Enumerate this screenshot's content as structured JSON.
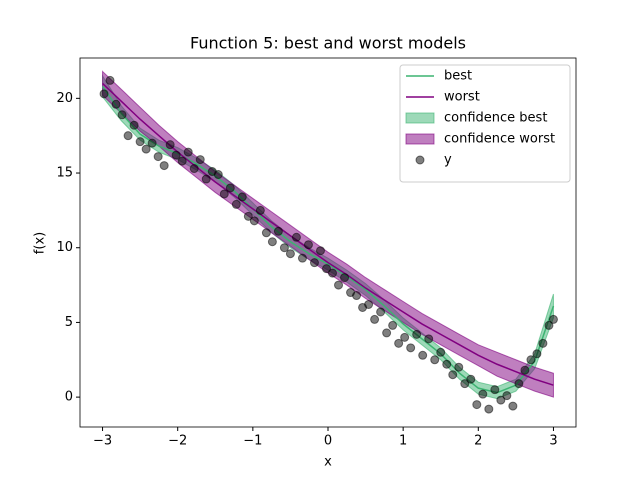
{
  "chart_data": {
    "type": "line",
    "title": "Function 5: best and worst models",
    "x_label": "x",
    "y_label": "f(x)",
    "xlim": [
      -3.3,
      3.3
    ],
    "ylim": [
      -2.0,
      22.7
    ],
    "xticks": [
      {
        "value": -3,
        "label": "−3"
      },
      {
        "value": -2,
        "label": "−2"
      },
      {
        "value": -1,
        "label": "−1"
      },
      0,
      1,
      2,
      3
    ],
    "yticks": [
      0,
      5,
      10,
      15,
      20
    ],
    "legend": "upper right",
    "x": [
      -3,
      -2.75,
      -2.5,
      -2.25,
      -2,
      -1.75,
      -1.5,
      -1.25,
      -1,
      -0.75,
      -0.5,
      -0.25,
      0,
      0.25,
      0.5,
      0.75,
      1,
      1.25,
      1.5,
      1.75,
      2,
      2.25,
      2.5,
      2.75,
      3
    ],
    "series": [
      {
        "name": "best",
        "color": "#3cb371",
        "values": [
          20.8,
          19.0,
          17.6,
          16.8,
          16.3,
          15.6,
          14.8,
          13.8,
          12.6,
          11.4,
          10.4,
          9.6,
          8.9,
          8.1,
          7.2,
          6.1,
          4.9,
          3.9,
          2.9,
          1.6,
          0.6,
          0.3,
          0.8,
          2.4,
          6.1
        ]
      },
      {
        "name": "worst",
        "color": "#800080",
        "values": [
          21.0,
          19.8,
          18.6,
          17.5,
          16.4,
          15.4,
          14.4,
          13.5,
          12.6,
          11.7,
          10.8,
          9.9,
          9.0,
          8.2,
          7.3,
          6.5,
          5.7,
          4.9,
          4.2,
          3.5,
          2.8,
          2.2,
          1.7,
          1.2,
          0.8
        ]
      }
    ],
    "bands": [
      {
        "name": "confidence best",
        "color": "#3cb371",
        "lower": [
          20.1,
          18.5,
          17.2,
          16.4,
          15.9,
          15.2,
          14.4,
          13.4,
          12.2,
          11.0,
          10.0,
          9.2,
          8.5,
          7.7,
          6.8,
          5.7,
          4.5,
          3.5,
          2.5,
          1.2,
          0.2,
          -0.1,
          0.4,
          1.9,
          5.3
        ],
        "upper": [
          21.5,
          19.5,
          18.0,
          17.2,
          16.7,
          16.0,
          15.2,
          14.2,
          13.0,
          11.8,
          10.8,
          10.0,
          9.3,
          8.5,
          7.6,
          6.5,
          5.3,
          4.3,
          3.3,
          2.0,
          1.0,
          0.7,
          1.2,
          2.9,
          6.9
        ]
      },
      {
        "name": "confidence worst",
        "color": "#800080",
        "lower": [
          20.2,
          19.0,
          17.8,
          16.8,
          15.7,
          14.7,
          13.7,
          12.8,
          11.9,
          11.0,
          10.1,
          9.2,
          8.3,
          7.5,
          6.6,
          5.8,
          5.0,
          4.2,
          3.5,
          2.8,
          2.1,
          1.4,
          0.9,
          0.4,
          0.0
        ],
        "upper": [
          21.8,
          20.6,
          19.4,
          18.2,
          17.1,
          16.1,
          15.1,
          14.2,
          13.3,
          12.4,
          11.5,
          10.6,
          9.7,
          8.9,
          8.0,
          7.2,
          6.4,
          5.6,
          4.9,
          4.2,
          3.5,
          3.0,
          2.5,
          2.0,
          1.6
        ]
      }
    ],
    "scatter": {
      "name": "y",
      "color": "#000000",
      "x": [
        -2.98,
        -2.9,
        -2.82,
        -2.74,
        -2.66,
        -2.58,
        -2.5,
        -2.42,
        -2.34,
        -2.26,
        -2.18,
        -2.1,
        -2.02,
        -1.94,
        -1.86,
        -1.78,
        -1.7,
        -1.62,
        -1.54,
        -1.46,
        -1.38,
        -1.3,
        -1.22,
        -1.14,
        -1.06,
        -0.98,
        -0.9,
        -0.82,
        -0.74,
        -0.66,
        -0.58,
        -0.5,
        -0.42,
        -0.34,
        -0.26,
        -0.18,
        -0.1,
        -0.02,
        0.06,
        0.14,
        0.22,
        0.3,
        0.38,
        0.46,
        0.54,
        0.62,
        0.7,
        0.78,
        0.86,
        0.94,
        1.02,
        1.1,
        1.18,
        1.26,
        1.34,
        1.42,
        1.5,
        1.58,
        1.66,
        1.74,
        1.82,
        1.9,
        1.98,
        2.06,
        2.14,
        2.22,
        2.3,
        2.38,
        2.46,
        2.54,
        2.62,
        2.7,
        2.78,
        2.86,
        2.94,
        3.0
      ],
      "y": [
        20.3,
        21.2,
        19.6,
        18.9,
        17.5,
        18.2,
        17.1,
        16.6,
        17.0,
        16.1,
        15.5,
        16.9,
        16.2,
        15.8,
        16.4,
        15.3,
        15.9,
        14.6,
        15.1,
        14.9,
        13.6,
        14.0,
        12.9,
        13.4,
        12.1,
        11.8,
        12.5,
        11.0,
        10.4,
        11.1,
        10.0,
        9.6,
        10.7,
        9.3,
        10.2,
        9.0,
        9.8,
        8.6,
        8.3,
        7.5,
        8.0,
        7.0,
        6.8,
        6.0,
        6.2,
        5.2,
        5.7,
        4.3,
        4.8,
        3.6,
        4.0,
        3.3,
        4.2,
        2.8,
        3.9,
        2.5,
        3.0,
        2.2,
        1.5,
        2.0,
        0.9,
        1.2,
        -0.5,
        0.2,
        -0.8,
        0.5,
        -0.2,
        0.1,
        -0.6,
        0.9,
        1.8,
        2.5,
        2.9,
        3.6,
        4.8,
        5.2
      ]
    }
  }
}
